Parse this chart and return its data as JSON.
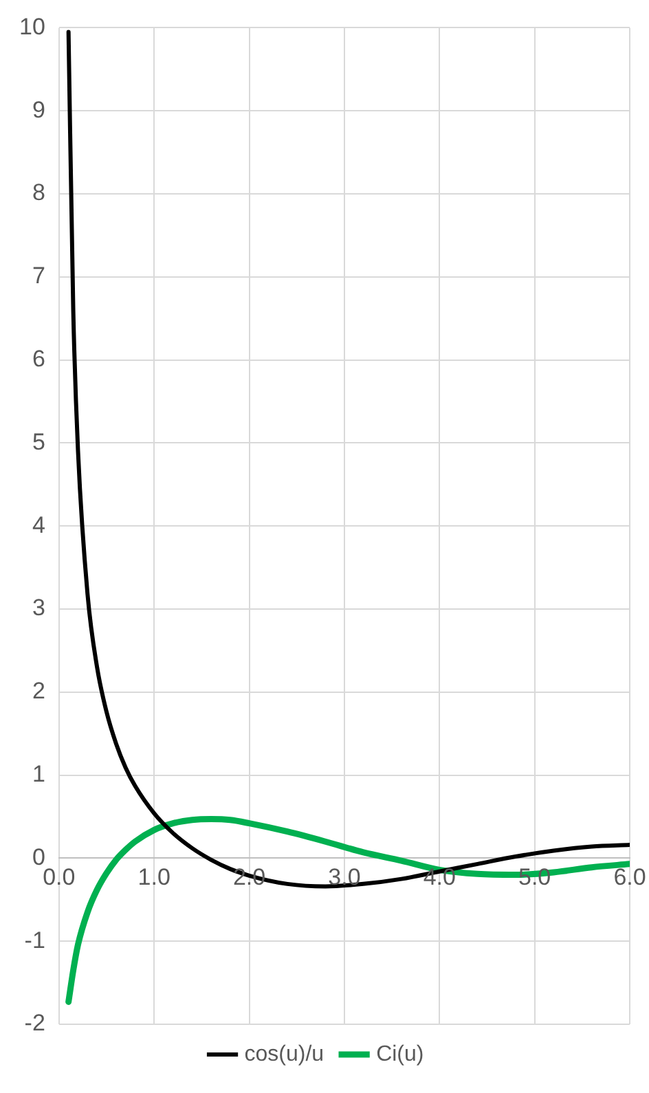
{
  "chart_data": {
    "type": "line",
    "x": [
      0.1,
      0.15,
      0.2,
      0.3,
      0.4,
      0.5,
      0.6,
      0.7,
      0.8,
      1.0,
      1.2,
      1.4,
      1.6,
      1.8,
      2.0,
      2.4,
      2.8,
      3.2,
      3.6,
      4.0,
      4.4,
      4.8,
      5.2,
      5.6,
      6.0
    ],
    "series": [
      {
        "name": "cos(u)/u",
        "color": "#000000",
        "values": [
          9.95,
          6.59,
          4.9,
          3.18,
          2.3,
          1.76,
          1.38,
          1.09,
          0.87,
          0.54,
          0.3,
          0.12,
          -0.02,
          -0.13,
          -0.21,
          -0.31,
          -0.34,
          -0.31,
          -0.25,
          -0.16,
          -0.07,
          0.02,
          0.09,
          0.14,
          0.16
        ]
      },
      {
        "name": "Ci(u)",
        "color": "#00b050",
        "values": [
          -1.73,
          -1.35,
          -1.04,
          -0.65,
          -0.38,
          -0.18,
          -0.02,
          0.1,
          0.2,
          0.34,
          0.42,
          0.46,
          0.47,
          0.46,
          0.42,
          0.32,
          0.2,
          0.07,
          -0.03,
          -0.14,
          -0.19,
          -0.2,
          -0.17,
          -0.11,
          -0.07
        ]
      }
    ],
    "xlim": [
      0,
      6
    ],
    "xticks": [
      {
        "value": 0,
        "label": "0.0"
      },
      {
        "value": 1,
        "label": "1.0"
      },
      {
        "value": 2,
        "label": "2.0"
      },
      {
        "value": 3,
        "label": "3.0"
      },
      {
        "value": 4,
        "label": "4.0"
      },
      {
        "value": 5,
        "label": "5.0"
      },
      {
        "value": 6,
        "label": "6.0"
      }
    ],
    "ylim": [
      -2,
      10
    ],
    "yticks": [
      -2,
      -1,
      0,
      1,
      2,
      3,
      4,
      5,
      6,
      7,
      8,
      9,
      10
    ],
    "grid": true,
    "legend": "bottom",
    "marker": "none",
    "line_style": "solid"
  }
}
